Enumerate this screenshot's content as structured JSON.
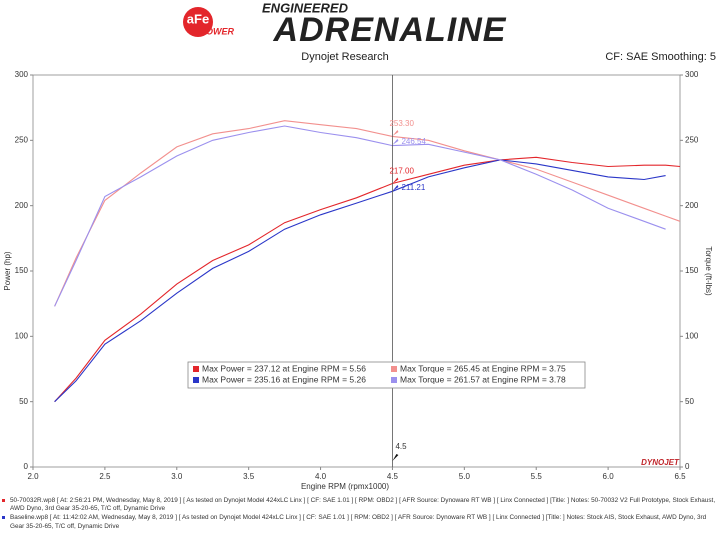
{
  "header": {
    "brand": "aFe",
    "brand_sub": "POWER",
    "tagline": "ENGINEERED",
    "name": "ADRENALINE"
  },
  "chart_data": {
    "type": "line",
    "title": "Dynojet Research",
    "subtitle": "CF: SAE Smoothing: 5",
    "watermark": "DYNOJET",
    "x_label": "Engine RPM (rpmx1000)",
    "y_label": "Power (hp)",
    "y2_label": "Torque (ft-lbs)",
    "x": [
      2.15,
      2.3,
      2.5,
      2.75,
      3.0,
      3.25,
      3.5,
      3.75,
      4.0,
      4.25,
      4.5,
      4.75,
      5.0,
      5.25,
      5.5,
      5.75,
      6.0,
      6.25,
      6.4,
      6.5
    ],
    "series": [
      {
        "color": "#e3262b",
        "axis": "y",
        "values": [
          50,
          68,
          97,
          117,
          140,
          158,
          170,
          187,
          197,
          206,
          217,
          224,
          231,
          235,
          237,
          233,
          230,
          231,
          231,
          230
        ]
      },
      {
        "color": "#f2908e",
        "axis": "y2",
        "values": [
          123,
          160,
          204,
          225,
          245,
          255,
          259,
          265,
          262,
          259,
          253,
          250,
          242,
          235,
          228,
          218,
          208,
          198,
          192,
          188
        ]
      },
      {
        "color": "#2a36c8",
        "axis": "y",
        "values": [
          50,
          66,
          94,
          112,
          133,
          152,
          165,
          182,
          193,
          202,
          211,
          222,
          229,
          235,
          232,
          227,
          222,
          220,
          223,
          null
        ]
      },
      {
        "color": "#9b90ee",
        "axis": "y2",
        "values": [
          123,
          158,
          207,
          222,
          238,
          250,
          256,
          261,
          256,
          252,
          246,
          247,
          241,
          235,
          224,
          212,
          198,
          188,
          182,
          null
        ]
      }
    ],
    "xlim": [
      2,
      6.5
    ],
    "xticks": [
      {
        "value": 2,
        "label": "2.0"
      },
      2.5,
      {
        "value": 3,
        "label": "3.0"
      },
      3.5,
      {
        "value": 4,
        "label": "4.0"
      },
      4.5,
      {
        "value": 5,
        "label": "5.0"
      },
      5.5,
      {
        "value": 6,
        "label": "6.0"
      },
      6.5
    ],
    "ylim": [
      0,
      300
    ],
    "yticks": [
      0,
      50,
      100,
      150,
      200,
      250,
      300
    ],
    "y2lim": [
      0,
      300
    ],
    "y2ticks": [
      0,
      50,
      100,
      150,
      200,
      250,
      300
    ],
    "cursor": {
      "x": 4.5,
      "values": [
        253.3,
        246.54,
        217,
        211.21
      ],
      "value_labels": [
        "253.30",
        "246.54",
        "217.00",
        "211.21"
      ],
      "axes": [
        "y2",
        "y2",
        "y",
        "y"
      ],
      "colors": [
        "#f2908e",
        "#9b90ee",
        "#e3262b",
        "#2a36c8"
      ]
    },
    "legend": [
      {
        "text": "Max Power = 237.12 at Engine RPM = 5.56",
        "color": "#e3262b"
      },
      {
        "text": "Max Torque = 265.45 at Engine RPM = 3.75",
        "color": "#f2908e"
      },
      {
        "text": "Max Power = 235.16 at Engine RPM = 5.26",
        "color": "#2a36c8"
      },
      {
        "text": "Max Torque = 261.57 at Engine RPM = 3.78",
        "color": "#9b90ee"
      }
    ],
    "notes": [
      {
        "color": "#e3262b",
        "text": "50-70032R.wp8 [ At: 2:56:21 PM, Wednesday, May 8, 2019 ] [ As tested on Dynojet Model 424xLC Linx ] [ CF: SAE 1.01 ] [ RPM: OBD2 ] [ AFR Source: Dynoware RT WB ] [ Linx Connected ] [Title: ]  Notes: 50-70032 V2 Full Prototype, Stock Exhaust, AWD Dyno, 3rd Gear 35-20-65, T/C off, Dynamic Drive"
      },
      {
        "color": "#2a36c8",
        "text": "Baseline.wp8 [ At: 11:42:02 AM, Wednesday, May 8, 2019 ] [ As tested on Dynojet Model 424xLC Linx ] [ CF: SAE 1.01 ] [ RPM: OBD2 ] [ AFR Source: Dynoware RT WB ] [ Linx Connected ] [Title: ]  Notes: Stock AIS, Stock Exhaust, AWD Dyno, 3rd Gear 35-20-65, T/C off, Dynamic Drive"
      }
    ]
  }
}
